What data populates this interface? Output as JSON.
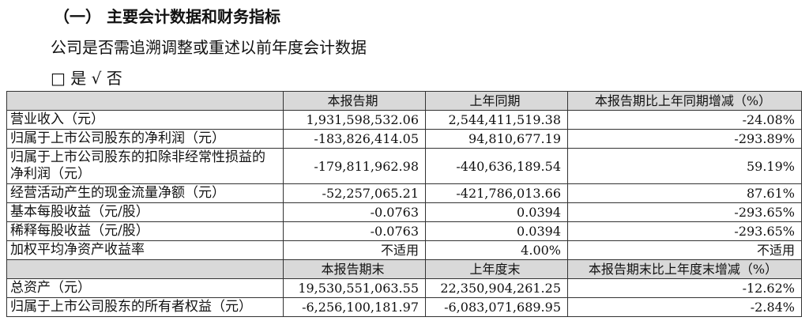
{
  "header": {
    "title": "（一） 主要会计数据和财务指标",
    "question": "公司是否需追溯调整或重述以前年度会计数据",
    "answer": "□ 是 √ 否"
  },
  "table": {
    "period_header": [
      "本报告期",
      "上年同期",
      "本报告期比上年同期增减（%）"
    ],
    "period_rows": [
      [
        "营业收入（元）",
        "1,931,598,532.06",
        "2,544,411,519.38",
        "-24.08%"
      ],
      [
        "归属于上市公司股东的净利润（元）",
        "-183,826,414.05",
        "94,810,677.19",
        "-293.89%"
      ],
      [
        "归属于上市公司股东的扣除非经常性损益的净利润（元）",
        "-179,811,962.98",
        "-440,636,189.54",
        "59.19%"
      ],
      [
        "经营活动产生的现金流量净额（元）",
        "-52,257,065.21",
        "-421,786,013.66",
        "87.61%"
      ],
      [
        "基本每股收益（元/股）",
        "-0.0763",
        "0.0394",
        "-293.65%"
      ],
      [
        "稀释每股收益（元/股）",
        "-0.0763",
        "0.0394",
        "-293.65%"
      ],
      [
        "加权平均净资产收益率",
        "不适用",
        "4.00%",
        "不适用"
      ]
    ],
    "balance_header": [
      "本报告期末",
      "上年度末",
      "本报告期末比上年度末增减（%）"
    ],
    "balance_rows": [
      [
        "总资产（元）",
        "19,530,551,063.55",
        "22,350,904,261.25",
        "-12.62%"
      ],
      [
        "归属于上市公司股东的所有者权益（元）",
        "-6,256,100,181.97",
        "-6,083,071,689.95",
        "-2.84%"
      ]
    ]
  }
}
